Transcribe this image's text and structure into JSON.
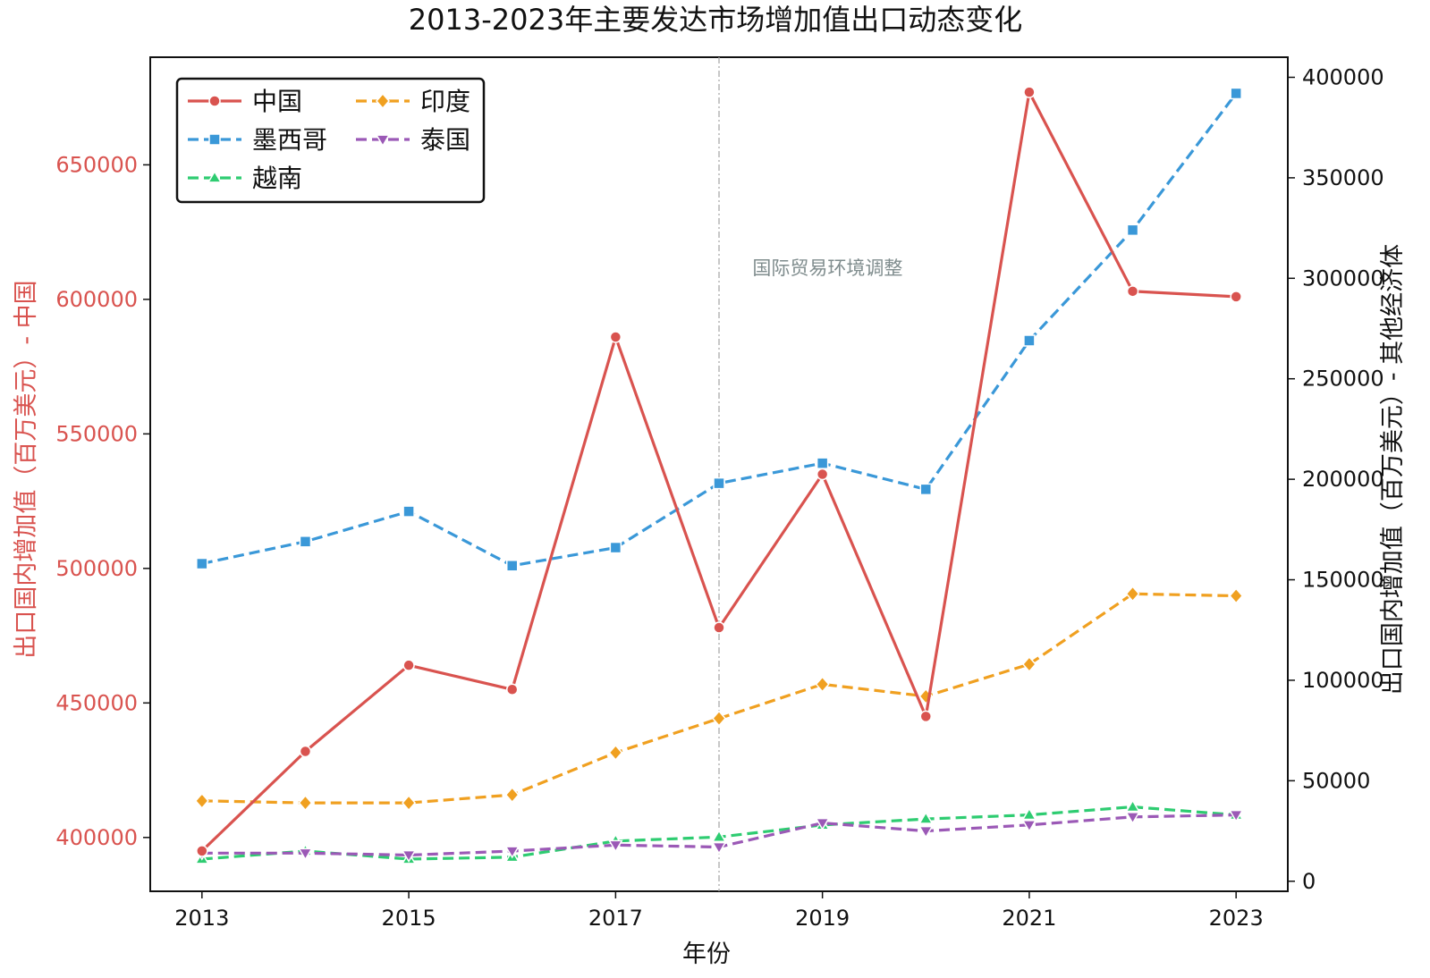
{
  "chart_data": {
    "type": "line",
    "title": "2013-2023年主要发达市场增加值出口动态变化",
    "xlabel": "年份",
    "ylabel_left": "出口国内增加值（百万美元）- 中国",
    "ylabel_right": "出口国内增加值（百万美元）- 其他经济体",
    "x": [
      2013,
      2014,
      2015,
      2016,
      2017,
      2018,
      2019,
      2020,
      2021,
      2022,
      2023
    ],
    "xticks": [
      "2013",
      "2015",
      "2017",
      "2019",
      "2021",
      "2023"
    ],
    "xlim": [
      2012.5,
      2023.5
    ],
    "ylim_left": [
      380000,
      690000
    ],
    "ylim_right": [
      -5000,
      410000
    ],
    "yticks_left": [
      "400000",
      "450000",
      "500000",
      "550000",
      "600000",
      "650000"
    ],
    "yticks_right": [
      "0",
      "50000",
      "100000",
      "150000",
      "200000",
      "250000",
      "300000",
      "350000",
      "400000"
    ],
    "series": [
      {
        "name": "中国",
        "axis": "left",
        "color": "#d9534f",
        "dash": "solid",
        "marker": "circle",
        "values": [
          395000,
          432000,
          464000,
          455000,
          586000,
          478000,
          535000,
          445000,
          677000,
          603000,
          601000
        ]
      },
      {
        "name": "印度",
        "axis": "right",
        "color": "#f0a020",
        "dash": "dashed",
        "marker": "diamond",
        "values": [
          40000,
          39000,
          39000,
          43000,
          64000,
          81000,
          98000,
          92000,
          108000,
          143000,
          142000
        ]
      },
      {
        "name": "墨西哥",
        "axis": "right",
        "color": "#3a98d8",
        "dash": "dashed",
        "marker": "square",
        "values": [
          158000,
          169000,
          184000,
          157000,
          166000,
          198000,
          208000,
          195000,
          269000,
          324000,
          392000
        ]
      },
      {
        "name": "泰国",
        "axis": "right",
        "color": "#9b59b6",
        "dash": "dashed",
        "marker": "triangle-down",
        "values": [
          14000,
          14000,
          13000,
          15000,
          18000,
          17000,
          29000,
          25000,
          28000,
          32000,
          33000
        ]
      },
      {
        "name": "越南",
        "axis": "right",
        "color": "#2ecc71",
        "dash": "dashed",
        "marker": "triangle-up",
        "values": [
          11000,
          15000,
          11000,
          12000,
          20000,
          22000,
          28000,
          31000,
          33000,
          37000,
          33000
        ]
      }
    ],
    "annotations": [
      {
        "type": "vline",
        "x": 2018,
        "color": "#aaaaaa",
        "text": "国际贸易环境调整",
        "text_x": 2019.05,
        "text_y_right": 302000
      }
    ],
    "grid": false,
    "legend": "top-left"
  }
}
